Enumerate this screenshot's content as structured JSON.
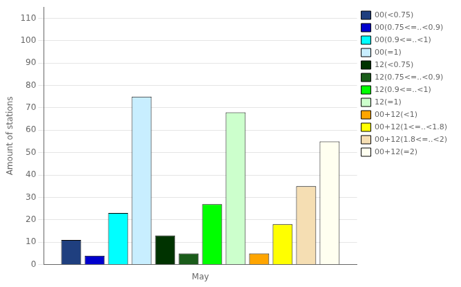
{
  "chart_data": {
    "type": "bar",
    "ylabel": "Amount of stations",
    "categories": [
      "May"
    ],
    "series": [
      {
        "name": "00(<0.75)",
        "color": "#1F3F7F",
        "values": [
          11
        ]
      },
      {
        "name": "00(0.75<=..<0.9)",
        "color": "#0000CD",
        "values": [
          4
        ]
      },
      {
        "name": "00(0.9<=..<1)",
        "color": "#00FFFF",
        "values": [
          23
        ]
      },
      {
        "name": "00(=1)",
        "color": "#C8EEFF",
        "values": [
          75
        ]
      },
      {
        "name": "12(<0.75)",
        "color": "#003300",
        "values": [
          13
        ]
      },
      {
        "name": "12(0.75<=..<0.9)",
        "color": "#1A5C1A",
        "values": [
          5
        ]
      },
      {
        "name": "12(0.9<=..<1)",
        "color": "#00FF00",
        "values": [
          27
        ]
      },
      {
        "name": "12(=1)",
        "color": "#CCFFCC",
        "values": [
          68
        ]
      },
      {
        "name": "00+12(<1)",
        "color": "#FFA500",
        "values": [
          5
        ]
      },
      {
        "name": "00+12(1<=..<1.8)",
        "color": "#FFFF00",
        "values": [
          18
        ]
      },
      {
        "name": "00+12(1.8<=..<2)",
        "color": "#F5DEB3",
        "values": [
          35
        ]
      },
      {
        "name": "00+12(=2)",
        "color": "#FFFFF0",
        "values": [
          55
        ]
      }
    ],
    "ylim": [
      0,
      115
    ],
    "yticks": [
      0,
      10,
      20,
      30,
      40,
      50,
      60,
      70,
      80,
      90,
      100,
      110
    ],
    "grid": true,
    "legend": "upper right"
  }
}
